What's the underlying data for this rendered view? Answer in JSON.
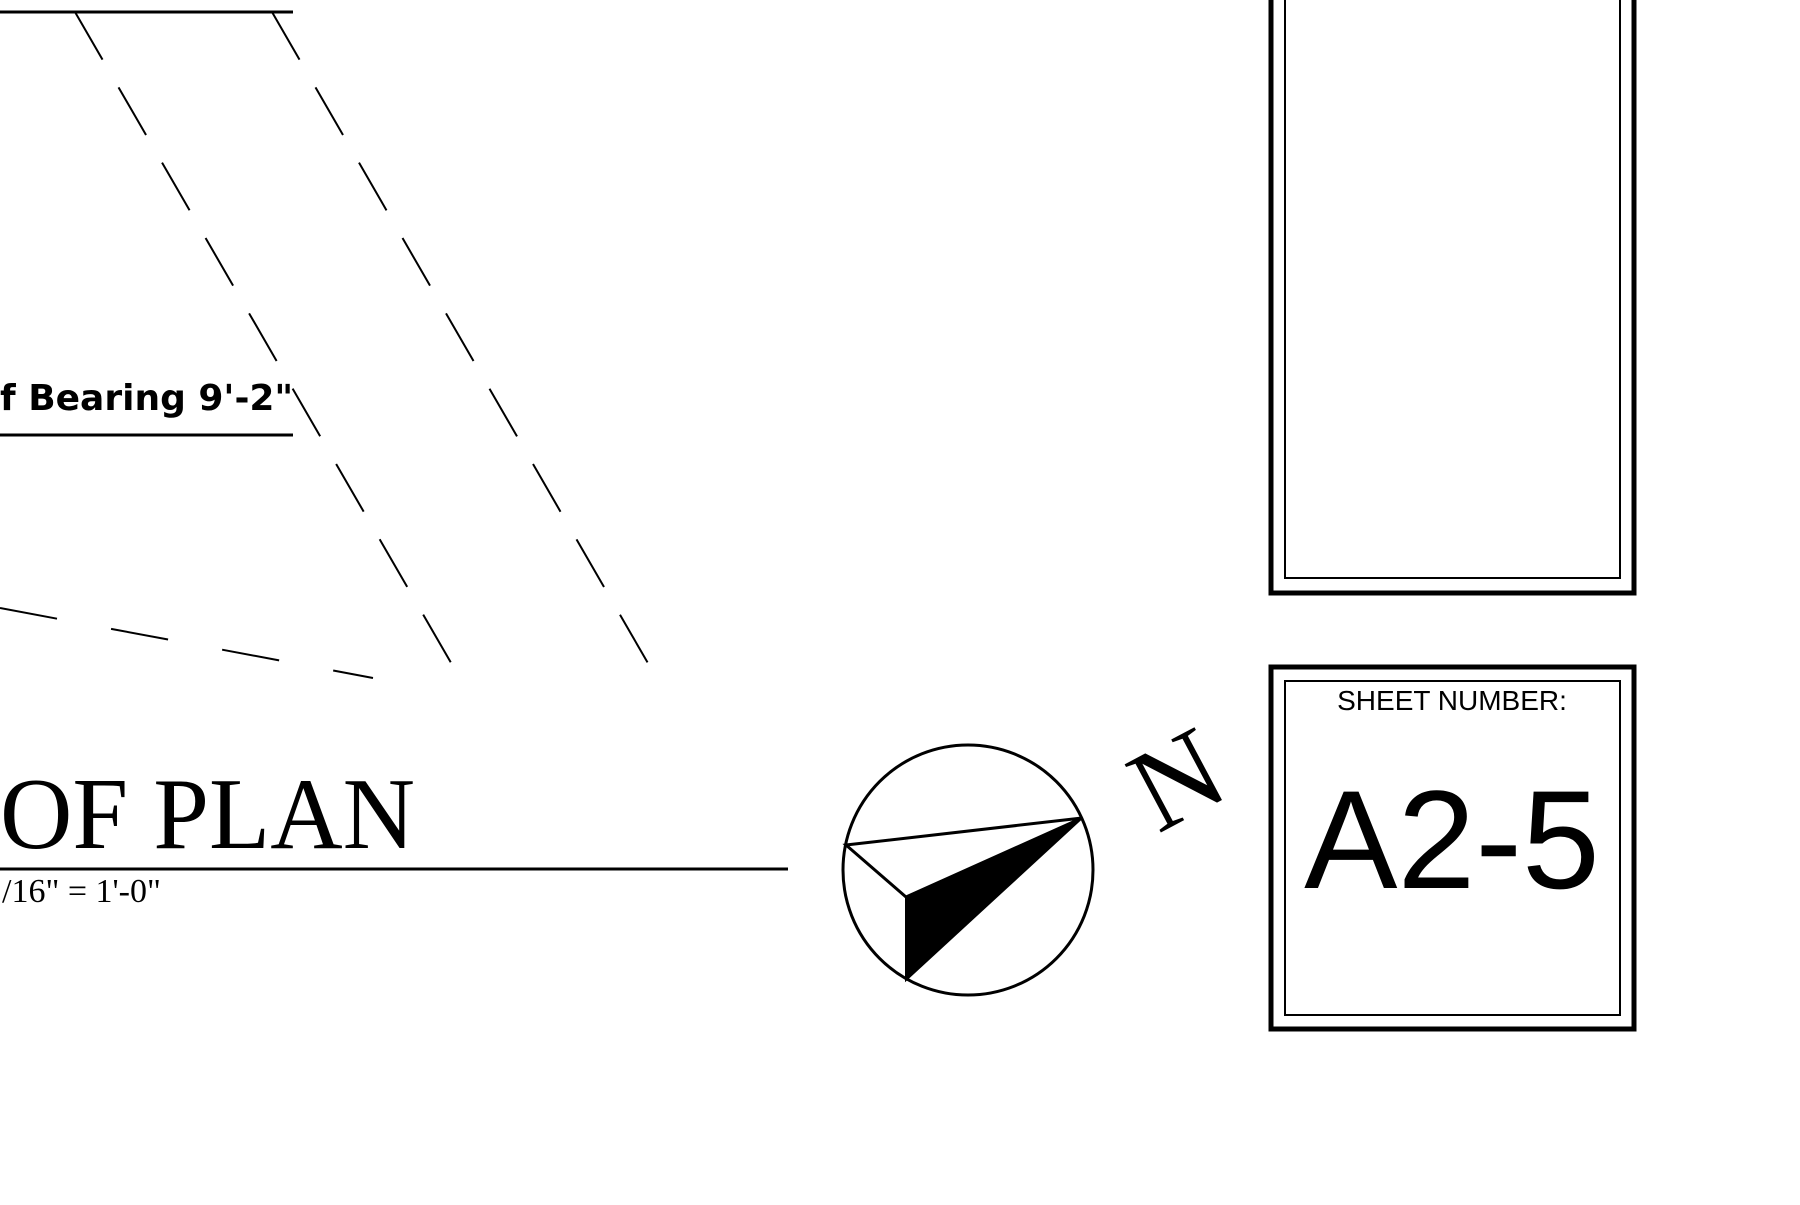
{
  "drawing": {
    "bearing_label": "f Bearing  9'-2\"",
    "plan_title": "OF PLAN",
    "scale_note": "/16\" =   1'-0\"",
    "north_letter": "N",
    "colors": {
      "ink": "#000000",
      "paper": "#ffffff"
    }
  },
  "title_block": {
    "sheet_label": "SHEET NUMBER:",
    "sheet_number": "A2-5"
  }
}
